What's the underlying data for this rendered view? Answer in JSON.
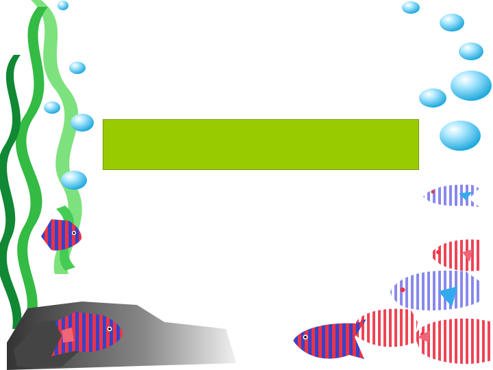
{
  "slide": {
    "background": "#ffffff",
    "title_box_color": "#99cc00",
    "title_text": ""
  },
  "decor": {
    "seaweed_light": "#66dd66",
    "seaweed_mid": "#33bb44",
    "seaweed_dark": "#118833",
    "bubble_color": "#33bbee",
    "rock_color": "#777777",
    "fish_red": "#ee3344",
    "fish_blue": "#3344cc",
    "fish_pink": "#ee6677",
    "fish_lavender": "#9999ee"
  }
}
